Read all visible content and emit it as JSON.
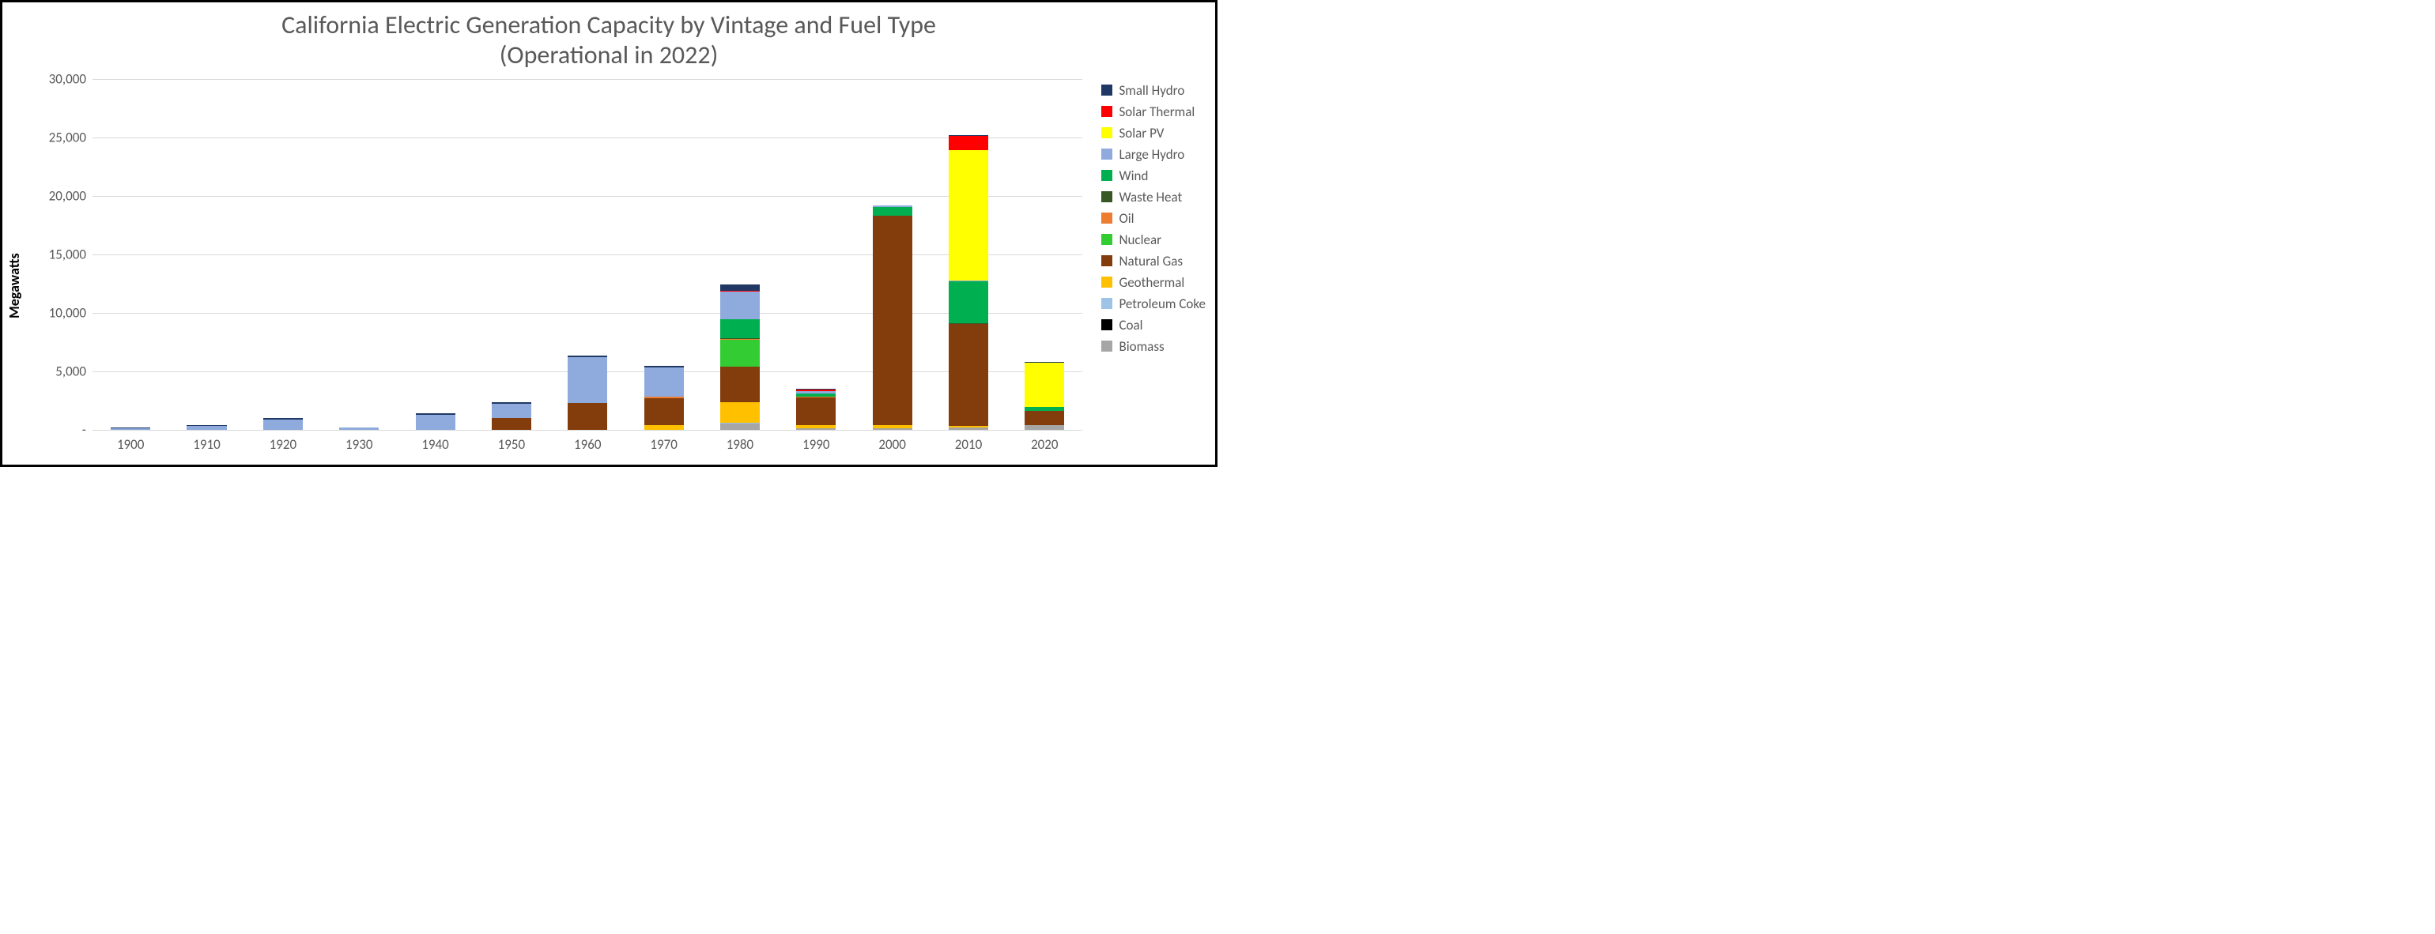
{
  "chart": {
    "type": "stacked-bar",
    "title": "California Electric Generation Capacity by Vintage and Fuel Type\n(Operational in 2022)",
    "title_fontsize": 32,
    "title_color": "#595959",
    "ylabel": "Megawatts",
    "ylabel_fontsize": 18,
    "background_color": "#ffffff",
    "grid_color": "#d9d9d9",
    "axis_label_color": "#595959",
    "tick_fontsize": 17,
    "frame_width": 1540,
    "frame_height": 591,
    "ylim": [
      0,
      30000
    ],
    "ytick_step": 5000,
    "yticks": [
      0,
      5000,
      10000,
      15000,
      20000,
      25000,
      30000
    ],
    "ytick_labels": [
      "-",
      "5,000",
      "10,000",
      "15,000",
      "20,000",
      "25,000",
      "30,000"
    ],
    "categories": [
      "1900",
      "1910",
      "1920",
      "1930",
      "1940",
      "1950",
      "1960",
      "1970",
      "1980",
      "1990",
      "2000",
      "2010",
      "2020"
    ],
    "series_order": [
      "Biomass",
      "Coal",
      "Petroleum Coke",
      "Geothermal",
      "Natural Gas",
      "Nuclear",
      "Oil",
      "Waste Heat",
      "Wind",
      "Large Hydro",
      "Solar PV",
      "Solar Thermal",
      "Small Hydro"
    ],
    "series_colors": {
      "Small Hydro": "#1f3864",
      "Solar Thermal": "#ff0000",
      "Solar PV": "#ffff00",
      "Large Hydro": "#8faadc",
      "Wind": "#00b050",
      "Waste Heat": "#385723",
      "Oil": "#ed7d31",
      "Nuclear": "#33cc33",
      "Natural Gas": "#833c0c",
      "Geothermal": "#ffc000",
      "Petroleum Coke": "#9dc3e6",
      "Coal": "#000000",
      "Biomass": "#a6a6a6"
    },
    "legend_order": [
      "Small Hydro",
      "Solar Thermal",
      "Solar PV",
      "Large Hydro",
      "Wind",
      "Waste Heat",
      "Oil",
      "Nuclear",
      "Natural Gas",
      "Geothermal",
      "Petroleum Coke",
      "Coal",
      "Biomass"
    ],
    "legend_fontsize": 17,
    "data": {
      "1900": {
        "Large Hydro": 150,
        "Small Hydro": 30
      },
      "1910": {
        "Large Hydro": 350,
        "Small Hydro": 60
      },
      "1920": {
        "Large Hydro": 850,
        "Small Hydro": 120
      },
      "1930": {
        "Large Hydro": 180,
        "Small Hydro": 40
      },
      "1940": {
        "Large Hydro": 1300,
        "Small Hydro": 120
      },
      "1950": {
        "Natural Gas": 1000,
        "Large Hydro": 1200,
        "Small Hydro": 120
      },
      "1960": {
        "Natural Gas": 2300,
        "Large Hydro": 3900,
        "Small Hydro": 150
      },
      "1970": {
        "Geothermal": 400,
        "Natural Gas": 2300,
        "Oil": 120,
        "Large Hydro": 2500,
        "Small Hydro": 120
      },
      "1980": {
        "Biomass": 500,
        "Coal": 60,
        "Petroleum Coke": 60,
        "Geothermal": 1700,
        "Natural Gas": 3100,
        "Nuclear": 2300,
        "Oil": 60,
        "Waste Heat": 60,
        "Wind": 1600,
        "Large Hydro": 2400,
        "Solar Thermal": 60,
        "Small Hydro": 500
      },
      "1990": {
        "Biomass": 120,
        "Geothermal": 250,
        "Natural Gas": 2400,
        "Oil": 60,
        "Wind": 250,
        "Large Hydro": 250,
        "Solar Thermal": 120,
        "Small Hydro": 80
      },
      "2000": {
        "Biomass": 120,
        "Geothermal": 250,
        "Natural Gas": 17900,
        "Oil": 60,
        "Wind": 700,
        "Large Hydro": 120,
        "Small Hydro": 60
      },
      "2010": {
        "Biomass": 200,
        "Geothermal": 120,
        "Natural Gas": 8700,
        "Waste Heat": 60,
        "Wind": 3600,
        "Large Hydro": 60,
        "Solar PV": 11200,
        "Solar Thermal": 1200,
        "Small Hydro": 60
      },
      "2020": {
        "Biomass": 400,
        "Natural Gas": 1200,
        "Wind": 350,
        "Solar PV": 3800,
        "Small Hydro": 30
      }
    }
  }
}
